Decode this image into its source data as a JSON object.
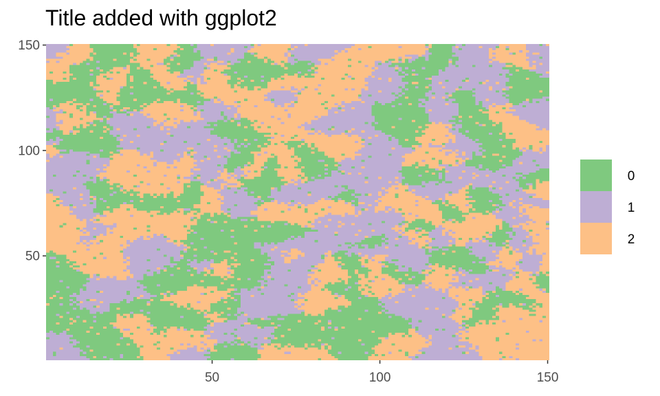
{
  "chart_data": {
    "type": "heatmap",
    "title": "Title added with ggplot2",
    "xlabel": "",
    "ylabel": "",
    "xlim": [
      1,
      150
    ],
    "ylim": [
      1,
      150
    ],
    "grid_size": [
      150,
      150
    ],
    "x_ticks": [
      {
        "value": 50,
        "label": "50"
      },
      {
        "value": 100,
        "label": "100"
      },
      {
        "value": 150,
        "label": "150"
      }
    ],
    "y_ticks": [
      {
        "value": 50,
        "label": "50"
      },
      {
        "value": 100,
        "label": "100"
      },
      {
        "value": 150,
        "label": "150"
      }
    ],
    "categories": [
      {
        "value": "0",
        "label": "0",
        "color": "#7FC97F"
      },
      {
        "value": "1",
        "label": "1",
        "color": "#BEAED4"
      },
      {
        "value": "2",
        "label": "2",
        "color": "#FDC086"
      }
    ],
    "legend_position": "right",
    "grid": false
  }
}
